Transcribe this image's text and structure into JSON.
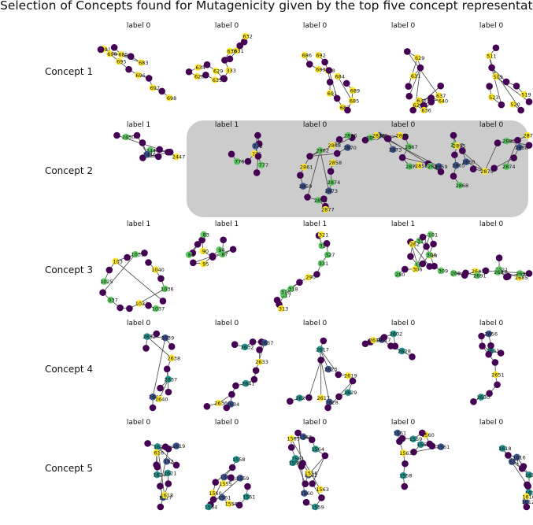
{
  "title": "Selection of Concepts found for Mutagenicity given by the top five concept representations",
  "colors": {
    "purple": "#440154",
    "yellow": "#fde725",
    "green": "#5ec962",
    "teal": "#21918c",
    "navy": "#3b528b",
    "steel": "#2c728e",
    "highlight": "#cccccc",
    "edge": "#444444"
  },
  "rows": [
    {
      "label": "Concept 1",
      "panels": [
        {
          "title": "label 0",
          "nodes": [
            "683",
            "685",
            "691",
            "690",
            "695",
            "696",
            "697",
            "698"
          ]
        },
        {
          "title": "label 0",
          "nodes": [
            "631",
            "632",
            "630",
            "333",
            "635",
            "628",
            "634",
            "629"
          ]
        },
        {
          "title": "label 0",
          "nodes": [
            "692",
            "688",
            "691",
            "687",
            "685",
            "689",
            "684",
            "683",
            "686"
          ]
        },
        {
          "title": "label 0",
          "nodes": [
            "629",
            "631",
            "626",
            "630",
            "640",
            "636",
            "637"
          ]
        },
        {
          "title": "label 0",
          "nodes": [
            "511",
            "509",
            "519",
            "520",
            "523"
          ]
        }
      ]
    },
    {
      "label": "Concept 2",
      "panels": [
        {
          "title": "label 1",
          "nodes": [
            "2448",
            "2447",
            "2446",
            "2450"
          ]
        },
        {
          "title": "label 1",
          "nodes": [
            "776",
            "775",
            "772",
            "777"
          ]
        },
        {
          "title": "label 0",
          "nodes": [
            "2862",
            "2861",
            "2859",
            "2878",
            "2877",
            "2873",
            "2874",
            "2858",
            "2870",
            "2866",
            "2868"
          ]
        },
        {
          "title": "label 0",
          "nodes": [
            "2867",
            "2866",
            "2849",
            "2853",
            "2876",
            "2873",
            "2877",
            "2858",
            "2859",
            "288"
          ]
        },
        {
          "title": "label 0",
          "nodes": [
            "2880",
            "2879",
            "2858",
            "2874",
            "2875",
            "2860",
            "2852",
            "2895",
            "2865",
            "2868"
          ]
        }
      ]
    },
    {
      "label": "Concept 3",
      "panels": [
        {
          "title": "label 1",
          "nodes": [
            "1035",
            "103",
            "1025",
            "037",
            "1032",
            "1037",
            "1036",
            "1040"
          ]
        },
        {
          "title": "label 1",
          "nodes": [
            "87",
            "90",
            "83",
            "86",
            "95",
            "94"
          ]
        },
        {
          "title": "label 1",
          "nodes": [
            "314",
            "321",
            "327",
            "331",
            "290",
            "318",
            "317",
            "313",
            "316"
          ]
        },
        {
          "title": "label 1",
          "nodes": [
            "311",
            "310",
            "309",
            "103",
            "262",
            "101",
            "304",
            "306",
            "280"
          ]
        },
        {
          "title": "label 0",
          "nodes": [
            "2621",
            "2685",
            "2690",
            "2687",
            "2643",
            "269",
            "2691"
          ]
        }
      ]
    },
    {
      "label": "Concept 4",
      "panels": [
        {
          "title": "label 0",
          "nodes": [
            "2632",
            "2639",
            "2638",
            "2637",
            "2641",
            "2640"
          ]
        },
        {
          "title": "label 0",
          "nodes": [
            "2632",
            "2637",
            "2633",
            "2641",
            "2634",
            "2636"
          ]
        },
        {
          "title": "label 0",
          "nodes": [
            "2617",
            "2623",
            "2619",
            "2629",
            "2628",
            "2617",
            "2627"
          ]
        },
        {
          "title": "label 0",
          "nodes": [
            "2628",
            "2617",
            "2619",
            "2602"
          ]
        },
        {
          "title": "label 0",
          "nodes": [
            "2651",
            "2656",
            "2651",
            "2630"
          ]
        }
      ]
    },
    {
      "label": "Concept 5",
      "panels": [
        {
          "title": "label 0",
          "nodes": [
            "1620",
            "1619",
            "616",
            "1624",
            "1617",
            "1618",
            "1621",
            "162"
          ]
        },
        {
          "title": "label 0",
          "nodes": [
            "1558",
            "1559",
            "1560",
            "1564",
            "1561",
            "1556",
            "1561",
            "1559",
            "1555"
          ]
        },
        {
          "title": "label 0",
          "nodes": [
            "1564",
            "1566",
            "1565",
            "1561",
            "1562",
            "1563",
            "1559",
            "1560",
            "1556",
            "1559"
          ]
        },
        {
          "title": "label 0",
          "nodes": [
            "1562",
            "1561",
            "1560",
            "1559",
            "1561",
            "1563",
            "1558"
          ]
        },
        {
          "title": "label 0",
          "nodes": [
            "1618",
            "1616",
            "1617",
            "1613",
            "1612",
            "1616",
            "1619",
            "531"
          ]
        }
      ]
    }
  ]
}
